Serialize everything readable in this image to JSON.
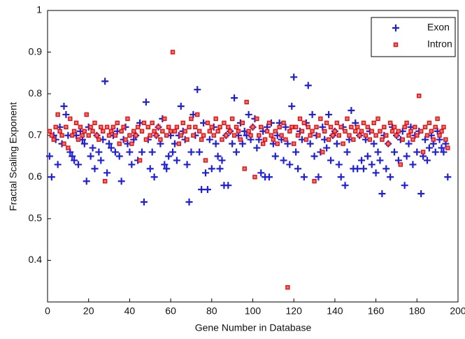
{
  "chart_data": {
    "type": "scatter",
    "xlabel": "Gene Number in Database",
    "ylabel": "Fractal Scaling Exponent",
    "xlim": [
      0,
      200
    ],
    "xticks": [
      0,
      20,
      40,
      60,
      80,
      100,
      120,
      140,
      160,
      180,
      200
    ],
    "ylim": [
      0.3,
      1
    ],
    "yticks": [
      0.4,
      0.5,
      0.6,
      0.7,
      0.8,
      0.9,
      1
    ],
    "legend": "upper right",
    "x": [
      1,
      2,
      3,
      4,
      5,
      6,
      7,
      8,
      9,
      10,
      11,
      12,
      13,
      14,
      15,
      16,
      17,
      18,
      19,
      20,
      21,
      22,
      23,
      24,
      25,
      26,
      27,
      28,
      29,
      30,
      31,
      32,
      33,
      34,
      35,
      36,
      37,
      38,
      39,
      40,
      41,
      42,
      43,
      44,
      45,
      46,
      47,
      48,
      49,
      50,
      51,
      52,
      53,
      54,
      55,
      56,
      57,
      58,
      59,
      60,
      61,
      62,
      63,
      64,
      65,
      66,
      67,
      68,
      69,
      70,
      71,
      72,
      73,
      74,
      75,
      76,
      77,
      78,
      79,
      80,
      81,
      82,
      83,
      84,
      85,
      86,
      87,
      88,
      89,
      90,
      91,
      92,
      93,
      94,
      95,
      96,
      97,
      98,
      99,
      100,
      101,
      102,
      103,
      104,
      105,
      106,
      107,
      108,
      109,
      110,
      111,
      112,
      113,
      114,
      115,
      116,
      117,
      118,
      119,
      120,
      121,
      122,
      123,
      124,
      125,
      126,
      127,
      128,
      129,
      130,
      131,
      132,
      133,
      134,
      135,
      136,
      137,
      138,
      139,
      140,
      141,
      142,
      143,
      144,
      145,
      146,
      147,
      148,
      149,
      150,
      151,
      152,
      153,
      154,
      155,
      156,
      157,
      158,
      159,
      160,
      161,
      162,
      163,
      164,
      165,
      166,
      167,
      168,
      169,
      170,
      171,
      172,
      173,
      174,
      175,
      176,
      177,
      178,
      179,
      180,
      181,
      182,
      183,
      184,
      185,
      186,
      187,
      188,
      189,
      190,
      191,
      192,
      193,
      194,
      195
    ],
    "series": [
      {
        "name": "Exon",
        "color": "#1f1fd6",
        "marker": "plus",
        "values": [
          0.65,
          0.6,
          0.7,
          0.69,
          0.63,
          0.72,
          0.68,
          0.77,
          0.75,
          0.7,
          0.66,
          0.65,
          0.64,
          0.7,
          0.63,
          0.71,
          0.69,
          0.68,
          0.59,
          0.72,
          0.65,
          0.67,
          0.62,
          0.7,
          0.66,
          0.64,
          0.69,
          0.83,
          0.61,
          0.68,
          0.67,
          0.7,
          0.66,
          0.71,
          0.65,
          0.59,
          0.69,
          0.72,
          0.68,
          0.66,
          0.63,
          0.69,
          0.7,
          0.64,
          0.73,
          0.66,
          0.54,
          0.78,
          0.69,
          0.62,
          0.66,
          0.6,
          0.7,
          0.72,
          0.68,
          0.74,
          0.63,
          0.62,
          0.65,
          0.7,
          0.66,
          0.68,
          0.64,
          0.7,
          0.77,
          0.71,
          0.69,
          0.63,
          0.54,
          0.66,
          0.75,
          0.7,
          0.81,
          0.66,
          0.57,
          0.73,
          0.61,
          0.57,
          0.69,
          0.62,
          0.72,
          0.68,
          0.65,
          0.62,
          0.64,
          0.58,
          0.7,
          0.58,
          0.71,
          0.68,
          0.79,
          0.66,
          0.7,
          0.73,
          0.68,
          0.71,
          0.7,
          0.75,
          0.69,
          0.72,
          0.74,
          0.67,
          0.69,
          0.61,
          0.71,
          0.6,
          0.72,
          0.6,
          0.73,
          0.68,
          0.65,
          0.7,
          0.73,
          0.69,
          0.64,
          0.72,
          0.68,
          0.63,
          0.77,
          0.84,
          0.66,
          0.62,
          0.71,
          0.69,
          0.6,
          0.73,
          0.82,
          0.68,
          0.75,
          0.65,
          0.7,
          0.6,
          0.66,
          0.72,
          0.69,
          0.67,
          0.75,
          0.64,
          0.7,
          0.71,
          0.68,
          0.63,
          0.6,
          0.72,
          0.58,
          0.66,
          0.69,
          0.76,
          0.62,
          0.73,
          0.62,
          0.7,
          0.64,
          0.62,
          0.69,
          0.65,
          0.71,
          0.63,
          0.68,
          0.61,
          0.66,
          0.64,
          0.56,
          0.7,
          0.62,
          0.68,
          0.6,
          0.72,
          0.66,
          0.7,
          0.64,
          0.69,
          0.71,
          0.58,
          0.65,
          0.68,
          0.72,
          0.63,
          0.7,
          0.66,
          0.71,
          0.56,
          0.65,
          0.69,
          0.64,
          0.67,
          0.7,
          0.68,
          0.66,
          0.71,
          0.69,
          0.67,
          0.66,
          0.68,
          0.6
        ]
      },
      {
        "name": "Intron",
        "color": "#e01010",
        "marker": "square",
        "values": [
          0.71,
          0.7,
          0.69,
          0.72,
          0.75,
          0.71,
          0.7,
          0.68,
          0.72,
          0.67,
          0.74,
          0.7,
          0.71,
          0.73,
          0.69,
          0.72,
          0.7,
          0.71,
          0.75,
          0.7,
          0.72,
          0.71,
          0.73,
          0.7,
          0.69,
          0.72,
          0.71,
          0.59,
          0.72,
          0.7,
          0.71,
          0.72,
          0.7,
          0.73,
          0.68,
          0.71,
          0.72,
          0.69,
          0.74,
          0.7,
          0.68,
          0.71,
          0.7,
          0.72,
          0.64,
          0.71,
          0.73,
          0.69,
          0.72,
          0.7,
          0.73,
          0.71,
          0.7,
          0.72,
          0.69,
          0.71,
          0.74,
          0.7,
          0.72,
          0.71,
          0.9,
          0.71,
          0.72,
          0.68,
          0.7,
          0.73,
          0.71,
          0.69,
          0.72,
          0.74,
          0.7,
          0.72,
          0.75,
          0.71,
          0.69,
          0.7,
          0.64,
          0.73,
          0.71,
          0.72,
          0.7,
          0.74,
          0.71,
          0.72,
          0.69,
          0.73,
          0.7,
          0.72,
          0.71,
          0.74,
          0.7,
          0.72,
          0.71,
          0.69,
          0.73,
          0.62,
          0.78,
          0.71,
          0.7,
          0.72,
          0.6,
          0.74,
          0.7,
          0.72,
          0.68,
          0.69,
          0.71,
          0.73,
          0.7,
          0.69,
          0.71,
          0.68,
          0.72,
          0.7,
          0.73,
          0.69,
          0.335,
          0.71,
          0.72,
          0.68,
          0.72,
          0.7,
          0.74,
          0.71,
          0.73,
          0.69,
          0.72,
          0.7,
          0.71,
          0.59,
          0.72,
          0.7,
          0.74,
          0.66,
          0.71,
          0.73,
          0.69,
          0.72,
          0.7,
          0.71,
          0.73,
          0.7,
          0.72,
          0.68,
          0.71,
          0.74,
          0.7,
          0.72,
          0.69,
          0.71,
          0.72,
          0.7,
          0.71,
          0.73,
          0.7,
          0.72,
          0.69,
          0.71,
          0.73,
          0.7,
          0.74,
          0.71,
          0.69,
          0.72,
          0.7,
          0.68,
          0.73,
          0.71,
          0.72,
          0.7,
          0.71,
          0.63,
          0.69,
          0.72,
          0.73,
          0.7,
          0.71,
          0.69,
          0.72,
          0.7,
          0.795,
          0.71,
          0.66,
          0.72,
          0.7,
          0.73,
          0.71,
          0.69,
          0.72,
          0.74,
          0.7,
          0.71,
          0.72,
          0.69,
          0.67
        ]
      }
    ]
  }
}
